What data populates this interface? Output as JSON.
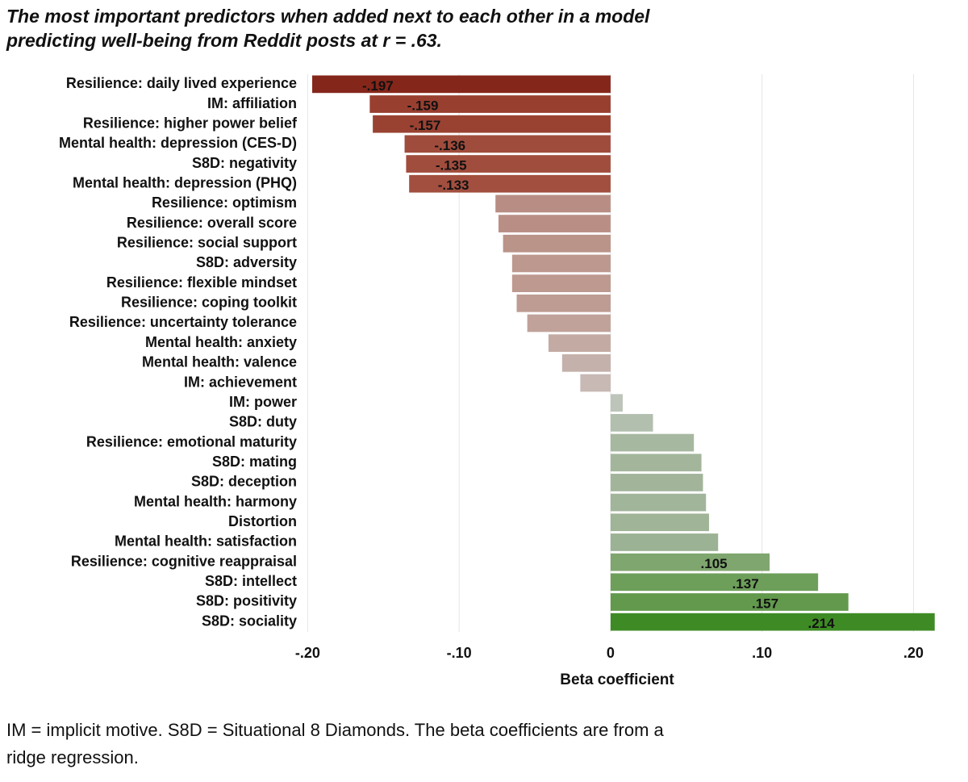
{
  "chart_data": {
    "type": "bar",
    "orientation": "horizontal",
    "title": "The most important predictors when added next to each other in a model predicting well-being from Reddit posts at r = .63.",
    "xlabel": "Beta coefficient",
    "note": "IM = implicit motive. S8D = Situational 8 Diamonds. The beta coefficients are from a ridge regression.",
    "categories": [
      "Resilience: daily lived experience",
      "IM: affiliation",
      "Resilience: higher power belief",
      "Mental health: depression (CES-D)",
      "S8D: negativity",
      "Mental health: depression (PHQ)",
      "Resilience: optimism",
      "Resilience: overall score",
      "Resilience: social support",
      "S8D: adversity",
      "Resilience: flexible mindset",
      "Resilience: coping toolkit",
      "Resilience: uncertainty tolerance",
      "Mental health: anxiety",
      "Mental health: valence",
      "IM: achievement",
      "IM: power",
      "S8D: duty",
      "Resilience: emotional maturity",
      "S8D: mating",
      "S8D: deception",
      "Mental health: harmony",
      "Distortion",
      "Mental health: satisfaction",
      "Resilience: cognitive reappraisal",
      "S8D: intellect",
      "S8D: positivity",
      "S8D: sociality"
    ],
    "values": [
      -0.197,
      -0.159,
      -0.157,
      -0.136,
      -0.135,
      -0.133,
      -0.076,
      -0.074,
      -0.071,
      -0.065,
      -0.065,
      -0.062,
      -0.055,
      -0.041,
      -0.032,
      -0.02,
      0.008,
      0.028,
      0.055,
      0.06,
      0.061,
      0.063,
      0.065,
      0.071,
      0.105,
      0.137,
      0.157,
      0.214
    ],
    "value_labels": [
      "-.197",
      "-.159",
      "-.157",
      "-.136",
      "-.135",
      "-.133",
      null,
      null,
      null,
      null,
      null,
      null,
      null,
      null,
      null,
      null,
      null,
      null,
      null,
      null,
      null,
      null,
      null,
      null,
      ".105",
      ".137",
      ".157",
      ".214"
    ],
    "colors": [
      "#85261a",
      "#983f30",
      "#9a4232",
      "#a04c3c",
      "#a14d3d",
      "#a24f3f",
      "#b88e84",
      "#b98f85",
      "#ba9389",
      "#bc988e",
      "#bd9990",
      "#be9c93",
      "#c0a29a",
      "#c3aba4",
      "#c5b1ab",
      "#c8b9b5",
      "#bdc5ba",
      "#b2bfae",
      "#a6b89f",
      "#a3b69c",
      "#a2b59b",
      "#a1b59a",
      "#a0b498",
      "#9cb294",
      "#7fa66f",
      "#6d9f5a",
      "#62994c",
      "#3e8b25"
    ],
    "xlim": [
      -0.205,
      0.22
    ],
    "xticks": [
      {
        "value": -0.2,
        "label": "-.20"
      },
      {
        "value": -0.1,
        "label": "-.10"
      },
      0,
      {
        "value": 0.1,
        "label": ".10"
      },
      {
        "value": 0.2,
        "label": ".20"
      }
    ],
    "grid": true
  }
}
